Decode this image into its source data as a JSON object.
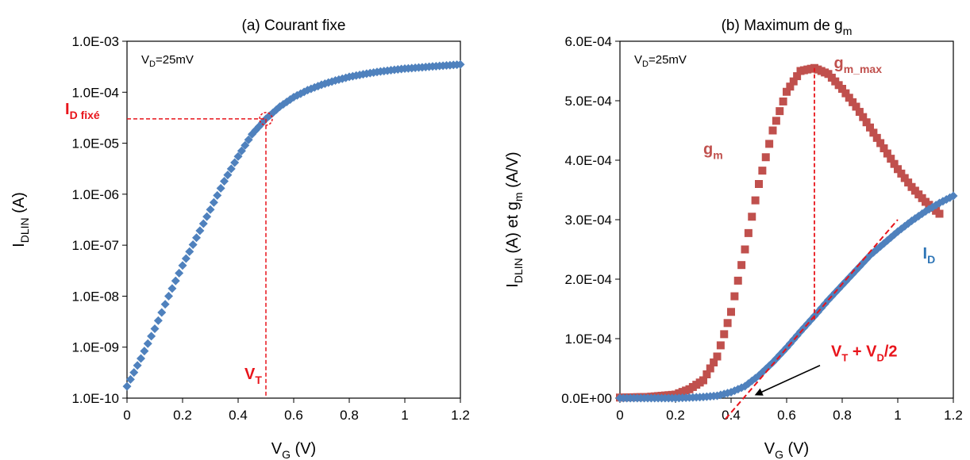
{
  "colors": {
    "id_series": "#4f81bd",
    "gm_series": "#c0504d",
    "annotation": "#e8141b",
    "id_label": "#2e75b6"
  },
  "chart_data": [
    {
      "type": "scatter",
      "title": "(a) Courant fixe",
      "xlabel": {
        "main": "V",
        "sub": "G",
        "unit": " (V)"
      },
      "ylabel": {
        "main": "I",
        "sub": "DLIN",
        "unit": "  (A)"
      },
      "yscale": "log",
      "xlim": [
        0,
        1.2
      ],
      "ylim": [
        1e-10,
        0.001
      ],
      "xticks": [
        "0",
        "0.2",
        "0.4",
        "0.6",
        "0.8",
        "1",
        "1.2"
      ],
      "yticks": [
        "1.0E-03",
        "1.0E-04",
        "1.0E-05",
        "1.0E-06",
        "1.0E-07",
        "1.0E-08",
        "1.0E-09",
        "1.0E-10"
      ],
      "grid": false,
      "annotation_vd": {
        "main": "V",
        "sub": "D",
        "rest": "=25mV"
      },
      "series": [
        {
          "marker": "diamond",
          "x": [
            0,
            0.05,
            0.1,
            0.15,
            0.2,
            0.25,
            0.3,
            0.35,
            0.4,
            0.45,
            0.5,
            0.55,
            0.6,
            0.65,
            0.7,
            0.75,
            0.8,
            0.85,
            0.9,
            0.95,
            1.0,
            1.05,
            1.1,
            1.15,
            1.2
          ],
          "y": [
            1.7e-10,
            6e-10,
            2.3e-09,
            1e-08,
            4e-08,
            1.4e-07,
            5e-07,
            1.8e-06,
            5.5e-06,
            1.5e-05,
            3e-05,
            5.2e-05,
            8e-05,
            0.00011,
            0.00014,
            0.00017,
            0.0002,
            0.000225,
            0.00025,
            0.00027,
            0.00029,
            0.000305,
            0.00032,
            0.000335,
            0.00035
          ]
        }
      ],
      "annotations": {
        "id_fixed": {
          "main": "I",
          "sub": "D fixé",
          "value": 3e-05
        },
        "vt": {
          "main": "V",
          "sub": "T",
          "value": 0.5
        }
      }
    },
    {
      "type": "scatter",
      "title": {
        "main": "(b) Maximum de g",
        "sub": "m"
      },
      "xlabel": {
        "main": "V",
        "sub": "G",
        "unit": " (V)"
      },
      "ylabel": {
        "p1": "I",
        "s1": "DLIN",
        "p2": " (A) et g",
        "s2": "m",
        "p3": "  (A/V)"
      },
      "xlim": [
        0,
        1.2
      ],
      "ylim": [
        0,
        0.0006
      ],
      "xticks": [
        "0",
        "0.2",
        "0.4",
        "0.6",
        "0.8",
        "1",
        "1.2"
      ],
      "yticks": [
        "6.0E-04",
        "5.0E-04",
        "4.0E-04",
        "3.0E-04",
        "2.0E-04",
        "1.0E-04",
        "0.0E+00"
      ],
      "grid": false,
      "annotation_vd": {
        "main": "V",
        "sub": "D",
        "rest": "=25mV"
      },
      "series": [
        {
          "marker": "square",
          "x": [
            0,
            0.1,
            0.2,
            0.25,
            0.3,
            0.35,
            0.4,
            0.45,
            0.5,
            0.55,
            0.6,
            0.65,
            0.7,
            0.75,
            0.8,
            0.85,
            0.9,
            0.95,
            1.0,
            1.05,
            1.1,
            1.15
          ],
          "y": [
            1e-06,
            2e-06,
            6e-06,
            1.5e-05,
            3e-05,
            7e-05,
            0.000145,
            0.00025,
            0.00036,
            0.00045,
            0.000515,
            0.00055,
            0.000555,
            0.000545,
            0.00052,
            0.00049,
            0.000455,
            0.00042,
            0.000385,
            0.000355,
            0.00033,
            0.00031
          ]
        },
        {
          "marker": "diamond",
          "x": [
            0,
            0.1,
            0.2,
            0.3,
            0.35,
            0.4,
            0.45,
            0.5,
            0.55,
            0.6,
            0.65,
            0.7,
            0.75,
            0.8,
            0.85,
            0.9,
            0.95,
            1.0,
            1.05,
            1.1,
            1.15,
            1.2
          ],
          "y": [
            0,
            0,
            0,
            2e-06,
            4e-06,
            1e-05,
            2e-05,
            3.8e-05,
            6e-05,
            8.5e-05,
            0.000112,
            0.000138,
            0.000165,
            0.00019,
            0.000215,
            0.00024,
            0.00026,
            0.00028,
            0.000298,
            0.000314,
            0.000328,
            0.00034
          ]
        }
      ],
      "annotations": {
        "gm": {
          "main": "g",
          "sub": "m"
        },
        "gm_max": {
          "main": "g",
          "sub": "m_max",
          "x": 0.7,
          "value": 0.000555
        },
        "id": {
          "main": "I",
          "sub": "D"
        },
        "vt_vd": {
          "p1": "V",
          "s1": "T",
          "p2": " + V",
          "s2": "D",
          "p3": "/2"
        }
      }
    }
  ]
}
